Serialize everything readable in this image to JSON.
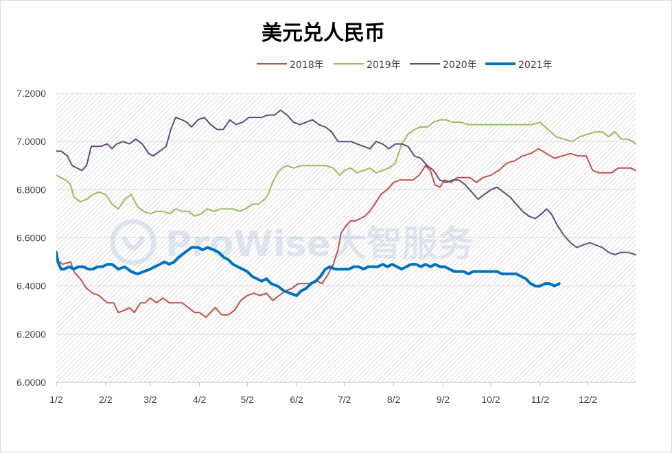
{
  "chart_data": {
    "type": "line",
    "title": "美元兑人民币",
    "xlabel": "",
    "ylabel": "",
    "ylim": [
      6.0,
      7.2
    ],
    "yticks": [
      "6.0000",
      "6.2000",
      "6.4000",
      "6.6000",
      "6.8000",
      "7.0000",
      "7.2000"
    ],
    "ytick_values": [
      6.0,
      6.2,
      6.4,
      6.6,
      6.8,
      7.0,
      7.2
    ],
    "xticks": [
      "1/2",
      "2/2",
      "3/2",
      "4/2",
      "5/2",
      "6/2",
      "7/2",
      "8/2",
      "9/2",
      "10/2",
      "11/2",
      "12/2"
    ],
    "xtick_days": [
      1,
      32,
      60,
      91,
      121,
      152,
      182,
      213,
      244,
      274,
      305,
      335
    ],
    "x_units": "day of year",
    "x_range": [
      1,
      365
    ],
    "grid": "horizontal",
    "legend_position": "top",
    "watermark": "ProWise大智服务",
    "series": [
      {
        "name": "2018年",
        "color": "#c0504d",
        "x": [
          1,
          5,
          10,
          12,
          16,
          20,
          24,
          28,
          33,
          37,
          40,
          44,
          47,
          50,
          54,
          57,
          60,
          64,
          68,
          72,
          76,
          80,
          84,
          88,
          91,
          95,
          98,
          101,
          105,
          109,
          113,
          117,
          121,
          125,
          129,
          133,
          137,
          141,
          145,
          149,
          153,
          157,
          161,
          165,
          168,
          171,
          175,
          178,
          180,
          183,
          186,
          189,
          192,
          195,
          198,
          201,
          205,
          209,
          213,
          217,
          221,
          225,
          229,
          233,
          236,
          239,
          242,
          245,
          249,
          253,
          257,
          261,
          265,
          269,
          274,
          279,
          284,
          289,
          294,
          299,
          304,
          309,
          314,
          319,
          324,
          329,
          334,
          338,
          342,
          346,
          350,
          354,
          358,
          362,
          365
        ],
        "values": [
          6.51,
          6.49,
          6.5,
          6.46,
          6.43,
          6.39,
          6.37,
          6.36,
          6.33,
          6.33,
          6.29,
          6.3,
          6.31,
          6.29,
          6.33,
          6.33,
          6.35,
          6.33,
          6.35,
          6.33,
          6.33,
          6.33,
          6.31,
          6.29,
          6.29,
          6.27,
          6.29,
          6.31,
          6.28,
          6.28,
          6.3,
          6.34,
          6.36,
          6.37,
          6.36,
          6.37,
          6.34,
          6.36,
          6.38,
          6.39,
          6.41,
          6.41,
          6.41,
          6.42,
          6.41,
          6.44,
          6.49,
          6.55,
          6.62,
          6.65,
          6.67,
          6.67,
          6.68,
          6.69,
          6.71,
          6.74,
          6.78,
          6.8,
          6.83,
          6.84,
          6.84,
          6.84,
          6.86,
          6.9,
          6.88,
          6.82,
          6.81,
          6.84,
          6.83,
          6.85,
          6.85,
          6.85,
          6.83,
          6.85,
          6.86,
          6.88,
          6.91,
          6.92,
          6.94,
          6.95,
          6.97,
          6.95,
          6.93,
          6.94,
          6.95,
          6.94,
          6.94,
          6.88,
          6.87,
          6.87,
          6.87,
          6.89,
          6.89,
          6.89,
          6.88
        ]
      },
      {
        "name": "2019年",
        "color": "#9bbb59",
        "x": [
          1,
          4,
          7,
          10,
          12,
          16,
          20,
          24,
          28,
          32,
          36,
          40,
          44,
          48,
          52,
          56,
          60,
          64,
          68,
          72,
          76,
          80,
          84,
          88,
          92,
          96,
          100,
          104,
          108,
          112,
          116,
          120,
          124,
          128,
          132,
          134,
          137,
          140,
          143,
          146,
          150,
          155,
          160,
          165,
          170,
          175,
          179,
          182,
          186,
          190,
          194,
          198,
          202,
          206,
          210,
          214,
          218,
          222,
          226,
          230,
          234,
          238,
          242,
          246,
          250,
          255,
          260,
          265,
          270,
          275,
          280,
          285,
          290,
          295,
          300,
          305,
          310,
          315,
          320,
          325,
          330,
          335,
          340,
          344,
          348,
          352,
          356,
          360,
          363,
          365
        ],
        "values": [
          6.86,
          6.85,
          6.84,
          6.82,
          6.77,
          6.75,
          6.76,
          6.78,
          6.79,
          6.78,
          6.74,
          6.72,
          6.76,
          6.78,
          6.73,
          6.71,
          6.7,
          6.71,
          6.71,
          6.7,
          6.72,
          6.71,
          6.71,
          6.69,
          6.7,
          6.72,
          6.71,
          6.72,
          6.72,
          6.72,
          6.71,
          6.72,
          6.74,
          6.74,
          6.76,
          6.78,
          6.83,
          6.87,
          6.89,
          6.9,
          6.89,
          6.9,
          6.9,
          6.9,
          6.9,
          6.89,
          6.86,
          6.88,
          6.89,
          6.87,
          6.88,
          6.89,
          6.87,
          6.88,
          6.89,
          6.91,
          6.99,
          7.03,
          7.05,
          7.06,
          7.06,
          7.08,
          7.09,
          7.09,
          7.08,
          7.08,
          7.07,
          7.07,
          7.07,
          7.07,
          7.07,
          7.07,
          7.07,
          7.07,
          7.07,
          7.08,
          7.05,
          7.02,
          7.01,
          7.0,
          7.02,
          7.03,
          7.04,
          7.04,
          7.02,
          7.04,
          7.01,
          7.01,
          7.0,
          6.99
        ]
      },
      {
        "name": "2020年",
        "color": "#604a7b",
        "x": [
          1,
          4,
          8,
          11,
          14,
          17,
          20,
          23,
          26,
          29,
          33,
          36,
          39,
          43,
          47,
          51,
          55,
          59,
          62,
          66,
          70,
          73,
          76,
          80,
          83,
          86,
          90,
          94,
          98,
          102,
          106,
          110,
          114,
          118,
          122,
          126,
          130,
          134,
          138,
          142,
          146,
          150,
          154,
          158,
          162,
          166,
          170,
          174,
          178,
          182,
          186,
          190,
          194,
          198,
          202,
          206,
          210,
          214,
          218,
          222,
          226,
          230,
          234,
          238,
          242,
          246,
          250,
          254,
          258,
          262,
          266,
          270,
          274,
          278,
          282,
          286,
          290,
          294,
          298,
          302,
          306,
          309,
          312,
          316,
          320,
          324,
          328,
          332,
          336,
          340,
          344,
          348,
          352,
          356,
          360,
          365
        ],
        "values": [
          6.96,
          6.96,
          6.94,
          6.9,
          6.89,
          6.88,
          6.9,
          6.98,
          6.98,
          6.98,
          6.99,
          6.97,
          6.99,
          7.0,
          6.99,
          7.01,
          6.99,
          6.95,
          6.94,
          6.96,
          6.98,
          7.05,
          7.1,
          7.09,
          7.08,
          7.06,
          7.09,
          7.1,
          7.07,
          7.05,
          7.05,
          7.09,
          7.07,
          7.08,
          7.1,
          7.1,
          7.1,
          7.11,
          7.11,
          7.13,
          7.11,
          7.08,
          7.07,
          7.08,
          7.09,
          7.07,
          7.06,
          7.04,
          7.0,
          7.0,
          7.0,
          6.99,
          6.98,
          6.97,
          7.0,
          6.99,
          6.97,
          6.99,
          6.99,
          6.98,
          6.94,
          6.93,
          6.9,
          6.88,
          6.84,
          6.83,
          6.84,
          6.84,
          6.82,
          6.79,
          6.76,
          6.78,
          6.8,
          6.81,
          6.79,
          6.77,
          6.74,
          6.71,
          6.69,
          6.68,
          6.7,
          6.72,
          6.7,
          6.65,
          6.61,
          6.58,
          6.56,
          6.57,
          6.58,
          6.57,
          6.56,
          6.54,
          6.53,
          6.54,
          6.54,
          6.53
        ]
      },
      {
        "name": "2021年",
        "color": "#0070c0",
        "x": [
          1,
          2,
          4,
          6,
          9,
          12,
          15,
          18,
          21,
          24,
          27,
          30,
          33,
          36,
          40,
          44,
          48,
          52,
          56,
          60,
          63,
          66,
          69,
          72,
          75,
          78,
          82,
          86,
          90,
          93,
          96,
          100,
          103,
          106,
          109,
          112,
          115,
          118,
          121,
          124,
          127,
          130,
          133,
          136,
          140,
          144,
          148,
          152,
          155,
          158,
          161,
          164,
          167,
          170,
          173,
          176,
          179,
          182,
          185,
          188,
          191,
          194,
          197,
          200,
          203,
          206,
          209,
          212,
          215,
          218,
          221,
          224,
          227,
          230,
          233,
          236,
          239,
          242,
          245,
          248,
          251,
          254,
          257,
          260,
          263,
          266,
          269,
          272,
          275,
          278,
          281,
          284,
          287,
          290,
          293,
          296,
          299,
          302,
          305,
          308,
          311,
          314,
          317
        ],
        "values": [
          6.54,
          6.5,
          6.47,
          6.47,
          6.48,
          6.47,
          6.48,
          6.48,
          6.47,
          6.47,
          6.48,
          6.48,
          6.49,
          6.49,
          6.47,
          6.48,
          6.46,
          6.45,
          6.46,
          6.47,
          6.48,
          6.49,
          6.5,
          6.49,
          6.5,
          6.52,
          6.54,
          6.56,
          6.56,
          6.55,
          6.56,
          6.55,
          6.54,
          6.52,
          6.51,
          6.49,
          6.48,
          6.47,
          6.46,
          6.44,
          6.43,
          6.42,
          6.43,
          6.41,
          6.4,
          6.38,
          6.37,
          6.36,
          6.38,
          6.39,
          6.41,
          6.42,
          6.44,
          6.47,
          6.48,
          6.47,
          6.47,
          6.47,
          6.47,
          6.48,
          6.48,
          6.47,
          6.48,
          6.48,
          6.48,
          6.49,
          6.48,
          6.49,
          6.48,
          6.47,
          6.48,
          6.49,
          6.49,
          6.48,
          6.49,
          6.48,
          6.49,
          6.48,
          6.48,
          6.47,
          6.46,
          6.46,
          6.46,
          6.45,
          6.46,
          6.46,
          6.46,
          6.46,
          6.46,
          6.46,
          6.45,
          6.45,
          6.45,
          6.45,
          6.44,
          6.43,
          6.41,
          6.4,
          6.4,
          6.41,
          6.41,
          6.4,
          6.41
        ]
      }
    ]
  }
}
